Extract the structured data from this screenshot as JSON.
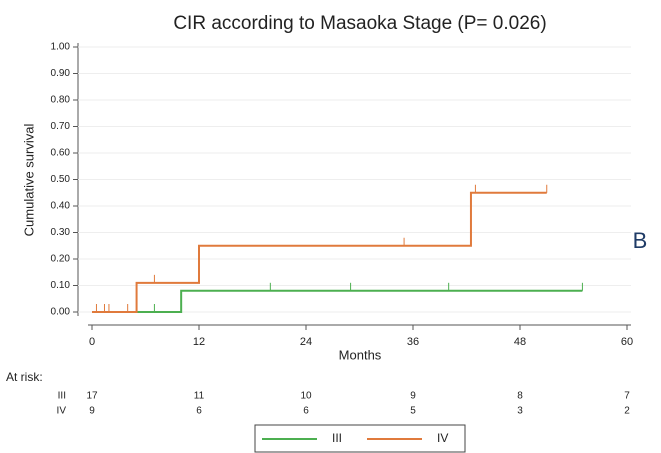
{
  "chart_data": {
    "type": "step",
    "title": "CIR according to Masaoka Stage (P= 0.026)",
    "xlabel": "Months",
    "ylabel": "Cumulative survival",
    "panel_label": "B",
    "xlim": [
      0,
      60
    ],
    "xticks": [
      0,
      12,
      24,
      36,
      48,
      60
    ],
    "ylim": [
      0,
      1
    ],
    "yticks": [
      {
        "value": 0,
        "label": "0.00"
      },
      {
        "value": 0.1,
        "label": "0.10"
      },
      {
        "value": 0.2,
        "label": "0.20"
      },
      {
        "value": 0.3,
        "label": "0.30"
      },
      {
        "value": 0.4,
        "label": "0.40"
      },
      {
        "value": 0.5,
        "label": "0.50"
      },
      {
        "value": 0.6,
        "label": "0.60"
      },
      {
        "value": 0.7,
        "label": "0.70"
      },
      {
        "value": 0.8,
        "label": "0.80"
      },
      {
        "value": 0.9,
        "label": "0.90"
      },
      {
        "value": 1,
        "label": "1.00"
      }
    ],
    "grid": true,
    "series": [
      {
        "name": "III",
        "color": "#4caf50",
        "x": [
          0,
          10,
          55
        ],
        "values": [
          0,
          0.08,
          0.08
        ],
        "censored_x": [
          7,
          20,
          29,
          40,
          55
        ],
        "censored_values": [
          0,
          0.08,
          0.08,
          0.08,
          0.08
        ]
      },
      {
        "name": "IV",
        "color": "#e07a3c",
        "x": [
          0,
          5,
          12,
          42.5,
          51
        ],
        "values": [
          0,
          0.11,
          0.25,
          0.45,
          0.45
        ],
        "censored_x": [
          0.5,
          1.4,
          1.9,
          4,
          7,
          35,
          43,
          51
        ],
        "censored_values": [
          0,
          0,
          0,
          0,
          0.11,
          0.25,
          0.45,
          0.45
        ]
      }
    ],
    "risk_table": {
      "title": "At risk:",
      "rows": [
        {
          "name": "III",
          "values": [
            17,
            11,
            10,
            9,
            8,
            7
          ]
        },
        {
          "name": "IV",
          "values": [
            9,
            6,
            6,
            5,
            3,
            2
          ]
        }
      ]
    }
  }
}
